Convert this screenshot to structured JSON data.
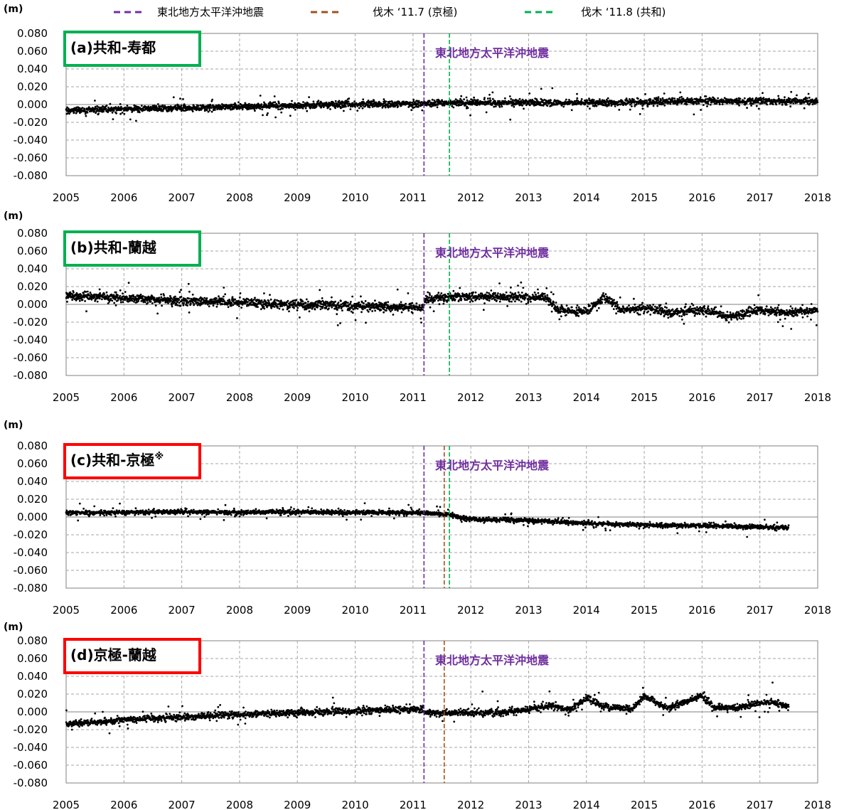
{
  "legend": [
    {
      "label": "東北地方太平洋沖地震",
      "color": "#7030a0"
    },
    {
      "label": "伐木 ‘11.7 (京極)",
      "color": "#a0521e"
    },
    {
      "label": "伐木 ‘11.8 (共和)",
      "color": "#00b050"
    }
  ],
  "unit": "(m)",
  "quake_label": "東北地方太平洋沖地震",
  "colors": {
    "green_box": "#00b050",
    "red_box": "#ff0000",
    "quake": "#7030a0",
    "felling_kyogoku": "#a0521e",
    "felling_kyowa": "#00b050",
    "points": "#000000",
    "grid": "#a6a6a6"
  },
  "chart_data": [
    {
      "type": "scatter",
      "title": "(a)共和-寿都",
      "title_main": "(a)共和-寿都",
      "title_note": "",
      "box_color": "#00b050",
      "xlim": [
        2005,
        2018
      ],
      "ylim": [
        -0.08,
        0.08
      ],
      "x_ticks": [
        "2005",
        "2006",
        "2007",
        "2008",
        "2009",
        "2010",
        "2011",
        "2012",
        "2013",
        "2014",
        "2015",
        "2016",
        "2017",
        "2018"
      ],
      "y_ticks": [
        "0.080",
        "0.060",
        "0.040",
        "0.020",
        "0.000",
        "-0.020",
        "-0.040",
        "-0.060",
        "-0.080"
      ],
      "grid": true,
      "vlines": [
        {
          "x": 2011.19,
          "color": "#7030a0"
        },
        {
          "x": 2011.63,
          "color": "#00b050"
        }
      ],
      "series_trend": {
        "x": [
          2005,
          2006,
          2007,
          2008,
          2009,
          2010,
          2011,
          2012,
          2013,
          2014,
          2015,
          2016,
          2017,
          2018
        ],
        "y": [
          -0.007,
          -0.005,
          -0.004,
          -0.002,
          -0.001,
          0.0,
          0.001,
          0.002,
          0.002,
          0.002,
          0.003,
          0.004,
          0.004,
          0.003
        ]
      },
      "x_end": 2018,
      "scatter_sd": 0.003
    },
    {
      "type": "scatter",
      "title": "(b)共和-蘭越",
      "title_main": "(b)共和-蘭越",
      "title_note": "",
      "box_color": "#00b050",
      "xlim": [
        2005,
        2018
      ],
      "ylim": [
        -0.08,
        0.08
      ],
      "x_ticks": [
        "2005",
        "2006",
        "2007",
        "2008",
        "2009",
        "2010",
        "2011",
        "2012",
        "2013",
        "2014",
        "2015",
        "2016",
        "2017",
        "2018"
      ],
      "y_ticks": [
        "0.080",
        "0.060",
        "0.040",
        "0.020",
        "0.000",
        "-0.020",
        "-0.040",
        "-0.060",
        "-0.080"
      ],
      "grid": true,
      "vlines": [
        {
          "x": 2011.19,
          "color": "#7030a0"
        },
        {
          "x": 2011.63,
          "color": "#00b050"
        }
      ],
      "series_trend": {
        "x": [
          2005,
          2006,
          2007,
          2008,
          2009,
          2010,
          2011.18,
          2011.2,
          2012,
          2012.7,
          2013.3,
          2013.5,
          2014.0,
          2014.3,
          2014.6,
          2015.0,
          2015.5,
          2016.0,
          2016.5,
          2017.0,
          2017.5,
          2018
        ],
        "y": [
          0.01,
          0.007,
          0.004,
          0.002,
          0.0,
          -0.002,
          -0.004,
          0.006,
          0.009,
          0.008,
          0.008,
          -0.006,
          -0.008,
          0.008,
          -0.006,
          -0.004,
          -0.01,
          -0.006,
          -0.014,
          -0.006,
          -0.01,
          -0.006
        ]
      },
      "x_end": 2018,
      "scatter_sd": 0.004
    },
    {
      "type": "scatter",
      "title": "(c)共和-京極※",
      "title_main": "(c)共和-京極",
      "title_note": "※",
      "box_color": "#ff0000",
      "xlim": [
        2005,
        2018
      ],
      "ylim": [
        -0.08,
        0.08
      ],
      "x_ticks": [
        "2005",
        "2006",
        "2007",
        "2008",
        "2009",
        "2010",
        "2011",
        "2012",
        "2013",
        "2014",
        "2015",
        "2016",
        "2017",
        "2018"
      ],
      "y_ticks": [
        "0.080",
        "0.060",
        "0.040",
        "0.020",
        "0.000",
        "-0.020",
        "-0.040",
        "-0.060",
        "-0.080"
      ],
      "grid": true,
      "vlines": [
        {
          "x": 2011.19,
          "color": "#7030a0"
        },
        {
          "x": 2011.54,
          "color": "#a0521e"
        },
        {
          "x": 2011.63,
          "color": "#00b050"
        }
      ],
      "series_trend": {
        "x": [
          2005,
          2006,
          2007,
          2008,
          2009,
          2010,
          2011,
          2011.6,
          2011.9,
          2013,
          2014,
          2015,
          2016,
          2017,
          2017.5
        ],
        "y": [
          0.005,
          0.005,
          0.006,
          0.005,
          0.006,
          0.005,
          0.005,
          0.003,
          -0.002,
          -0.004,
          -0.007,
          -0.009,
          -0.01,
          -0.011,
          -0.012
        ]
      },
      "x_end": 2017.5,
      "scatter_sd": 0.002
    },
    {
      "type": "scatter",
      "title": "(d)京極-蘭越",
      "title_main": "(d)京極-蘭越",
      "title_note": "",
      "box_color": "#ff0000",
      "xlim": [
        2005,
        2018
      ],
      "ylim": [
        -0.08,
        0.08
      ],
      "x_ticks": [
        "2005",
        "2006",
        "2007",
        "2008",
        "2009",
        "2010",
        "2011",
        "2012",
        "2013",
        "2014",
        "2015",
        "2016",
        "2017",
        "2018"
      ],
      "y_ticks": [
        "0.080",
        "0.060",
        "0.040",
        "0.020",
        "0.000",
        "-0.020",
        "-0.040",
        "-0.060",
        "-0.080"
      ],
      "grid": true,
      "vlines": [
        {
          "x": 2011.19,
          "color": "#7030a0"
        },
        {
          "x": 2011.54,
          "color": "#a0521e"
        }
      ],
      "series_trend": {
        "x": [
          2005,
          2006,
          2007,
          2008,
          2009,
          2010,
          2011.18,
          2011.2,
          2012.5,
          2013.0,
          2013.4,
          2013.7,
          2014.0,
          2014.4,
          2014.8,
          2015.0,
          2015.4,
          2016.0,
          2016.2,
          2016.6,
          2017.0,
          2017.2,
          2017.5
        ],
        "y": [
          -0.014,
          -0.009,
          -0.006,
          -0.003,
          -0.001,
          0.001,
          0.003,
          -0.001,
          -0.001,
          0.003,
          0.007,
          0.002,
          0.015,
          0.004,
          0.004,
          0.018,
          0.004,
          0.018,
          0.005,
          0.005,
          0.01,
          0.011,
          0.006
        ]
      },
      "x_end": 2017.5,
      "scatter_sd": 0.003
    }
  ]
}
